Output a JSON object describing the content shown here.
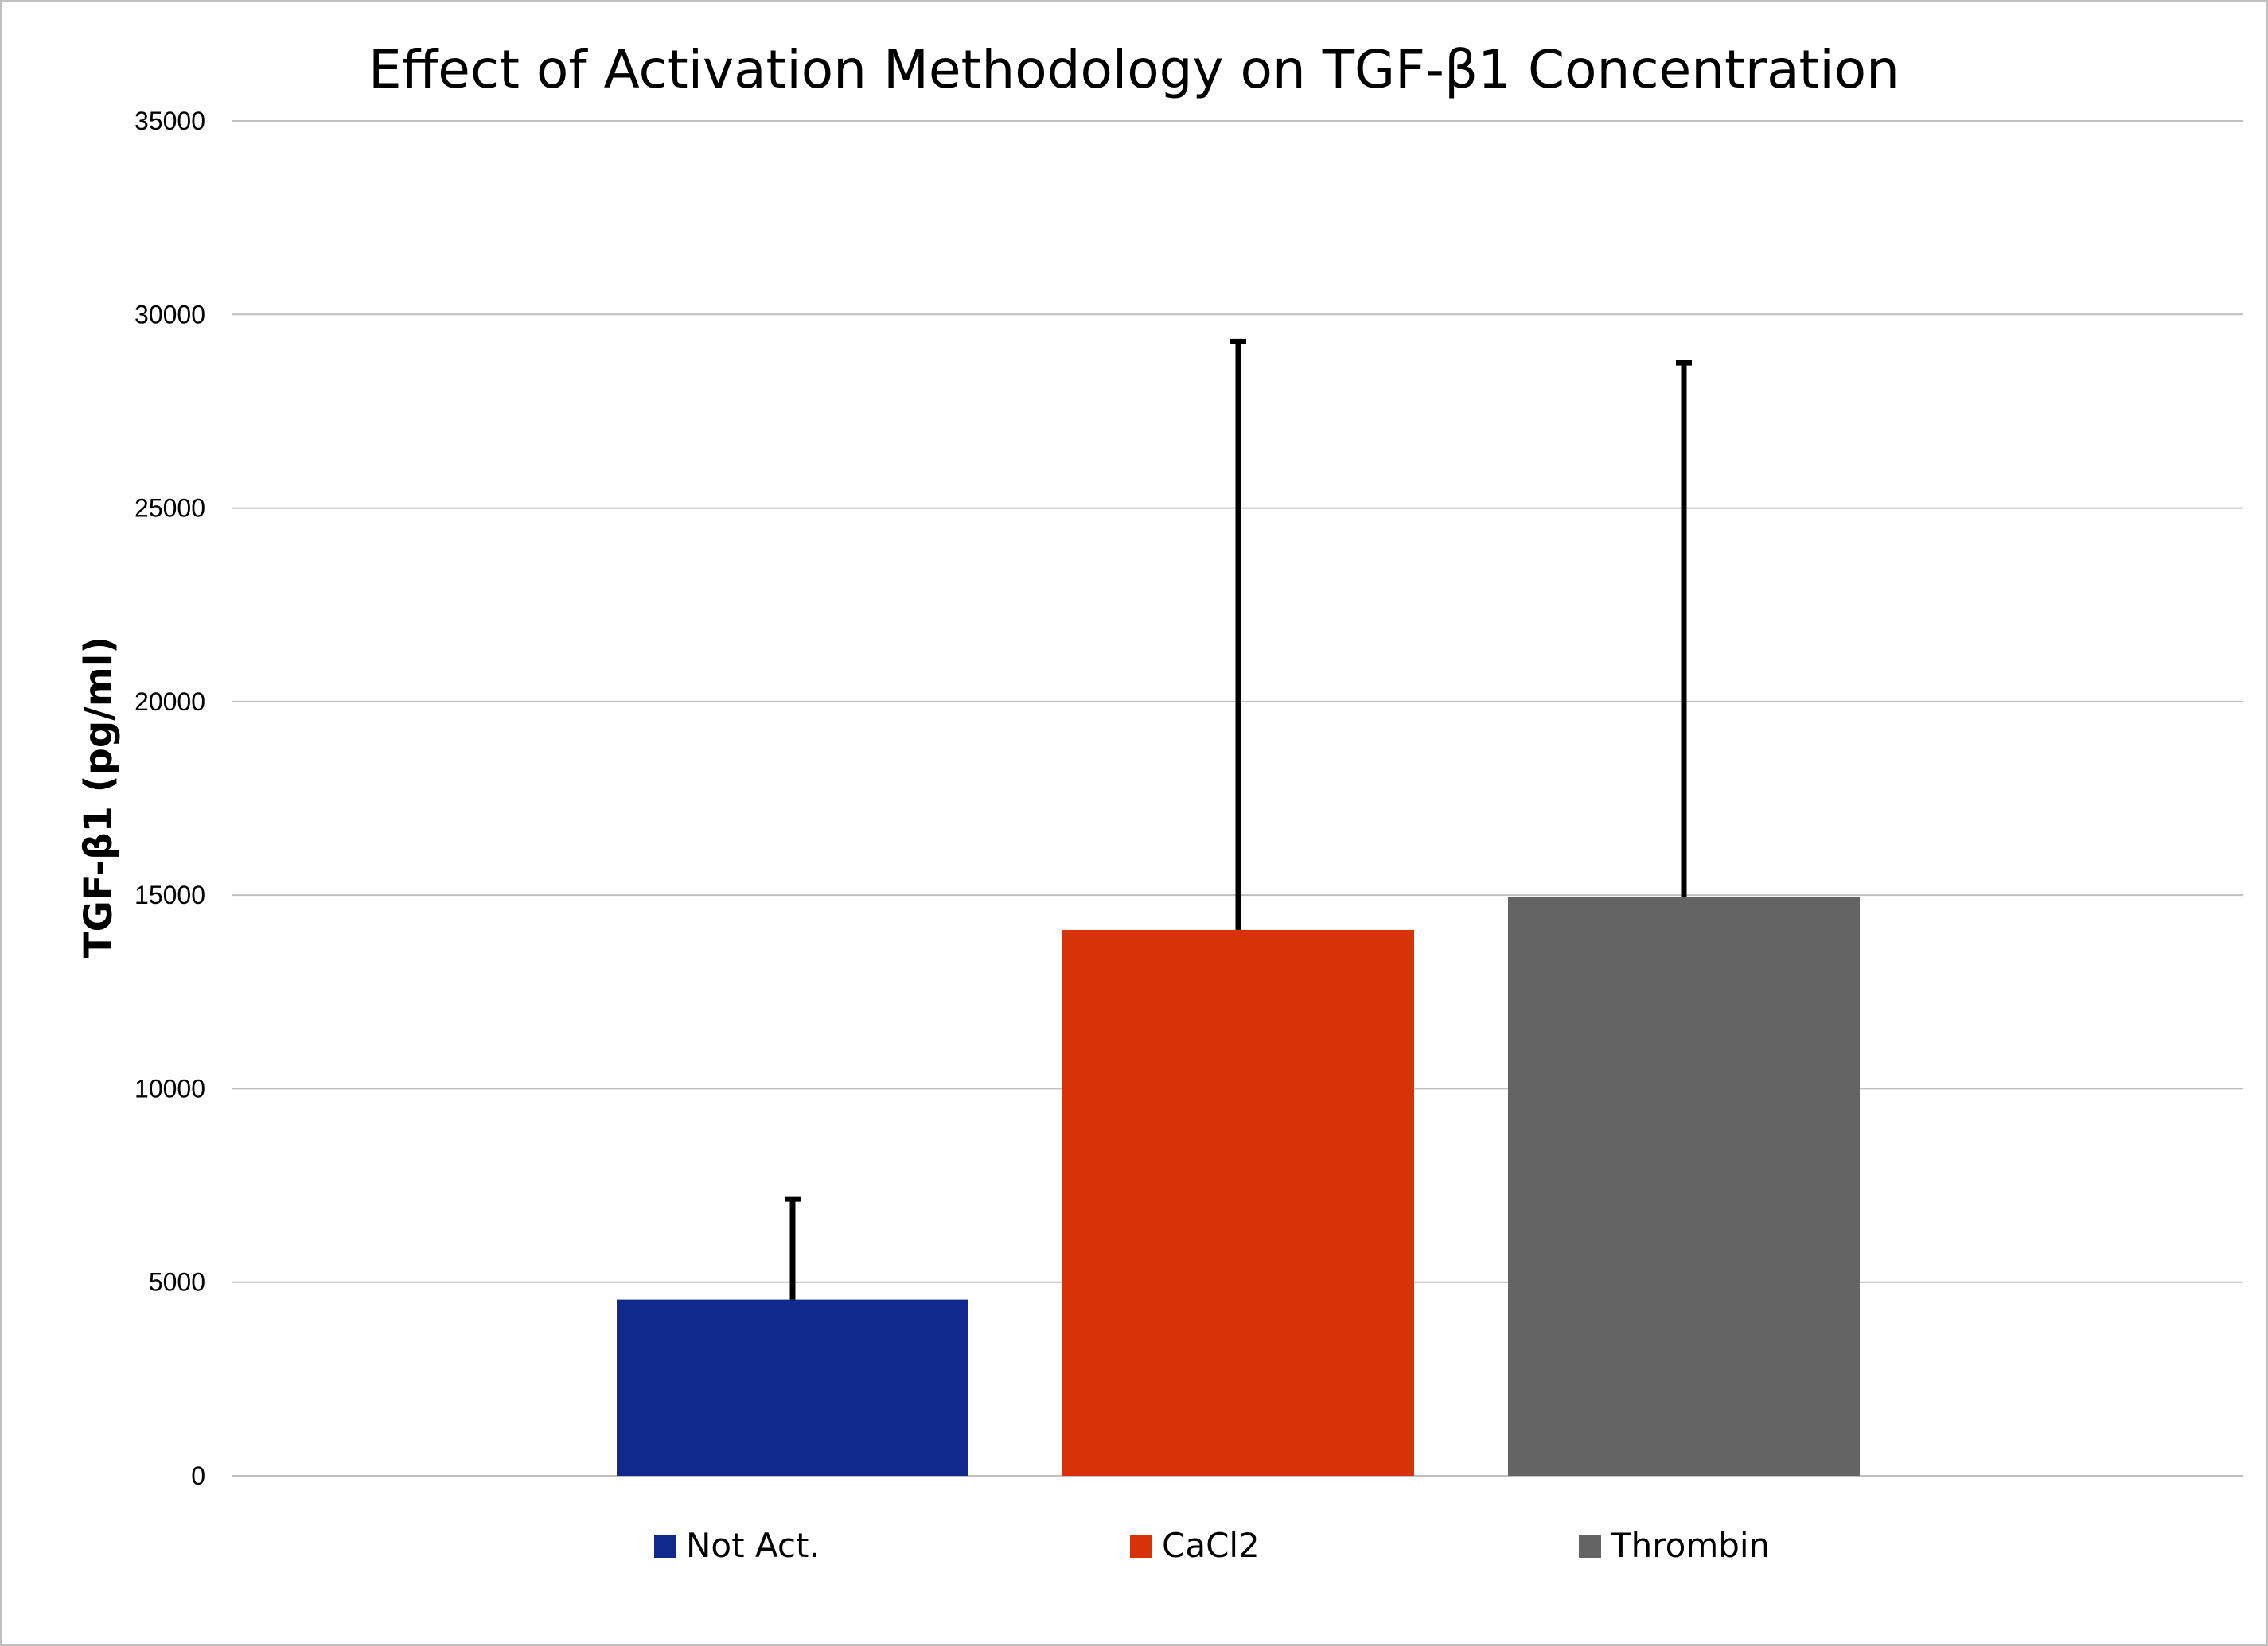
{
  "chart_data": {
    "type": "bar",
    "title": "Effect of Activation Methodology on TGF-β1 Concentration",
    "ylabel": "TGF-β1 (pg/ml)",
    "xlabel": "",
    "ylim": [
      0,
      35000
    ],
    "yticks": [
      0,
      5000,
      10000,
      15000,
      20000,
      25000,
      30000,
      35000
    ],
    "ytick_labels": [
      "0",
      "5000",
      "10000",
      "15000",
      "20000",
      "25000",
      "30000",
      "35000"
    ],
    "grid": true,
    "legend_position": "bottom",
    "series": [
      {
        "name": "Not Act.",
        "value": 4550,
        "error_upper": 7150,
        "color": "#0f2a8c"
      },
      {
        "name": "CaCl2",
        "value": 14100,
        "error_upper": 29300,
        "color": "#d8320a"
      },
      {
        "name": "Thrombin",
        "value": 14950,
        "error_upper": 28750,
        "color": "#646464"
      }
    ],
    "error_bar_color": "#000000",
    "gridline_color": "#bfbfbf"
  }
}
